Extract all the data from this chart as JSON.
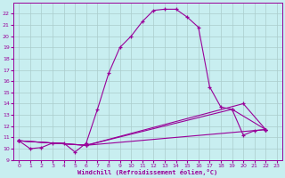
{
  "xlabel": "Windchill (Refroidissement éolien,°C)",
  "bg_color": "#c8eef0",
  "grid_color": "#aacccc",
  "line_color": "#990099",
  "xlim": [
    -0.5,
    23.5
  ],
  "ylim": [
    9,
    23
  ],
  "xticks": [
    0,
    1,
    2,
    3,
    4,
    5,
    6,
    7,
    8,
    9,
    10,
    11,
    12,
    13,
    14,
    15,
    16,
    17,
    18,
    19,
    20,
    21,
    22,
    23
  ],
  "yticks": [
    9,
    10,
    11,
    12,
    13,
    14,
    15,
    16,
    17,
    18,
    19,
    20,
    21,
    22
  ],
  "series": [
    {
      "x": [
        0,
        1,
        2,
        3,
        4,
        5,
        6,
        7,
        8,
        9,
        10,
        11,
        12,
        13,
        14,
        15,
        16,
        17,
        18,
        19,
        20,
        21,
        22
      ],
      "y": [
        10.7,
        10.0,
        10.1,
        10.5,
        10.5,
        9.7,
        10.5,
        13.5,
        16.7,
        19.0,
        20.0,
        21.3,
        22.3,
        22.4,
        22.4,
        21.7,
        20.8,
        15.5,
        13.7,
        13.5,
        11.2,
        11.6,
        11.7
      ]
    },
    {
      "x": [
        0,
        6,
        22
      ],
      "y": [
        10.7,
        10.3,
        11.7
      ]
    },
    {
      "x": [
        0,
        6,
        19,
        22
      ],
      "y": [
        10.7,
        10.3,
        13.5,
        11.7
      ]
    },
    {
      "x": [
        0,
        6,
        20,
        22
      ],
      "y": [
        10.7,
        10.3,
        14.0,
        11.7
      ]
    }
  ]
}
